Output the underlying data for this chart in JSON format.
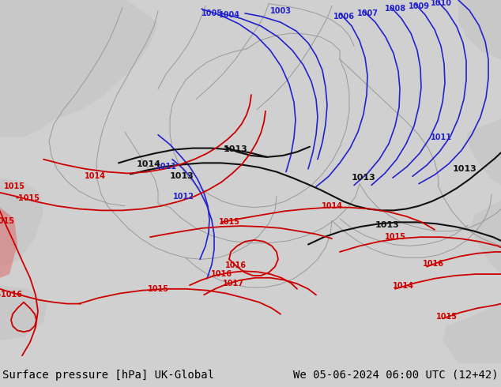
{
  "title_left": "Surface pressure [hPa] UK-Global",
  "title_right": "We 05-06-2024 06:00 UTC (12+42)",
  "bg_land_color": "#b0dc98",
  "bg_gray_color": "#c8c8c8",
  "blue_color": "#2222cc",
  "red_color": "#cc0000",
  "black_color": "#111111",
  "border_color": "#999999",
  "bottom_bar_color": "#d0d0d0",
  "text_color": "#000000",
  "font_size_label": 10,
  "font_size_isobar": 7,
  "figsize": [
    6.34,
    4.9
  ],
  "dpi": 100
}
